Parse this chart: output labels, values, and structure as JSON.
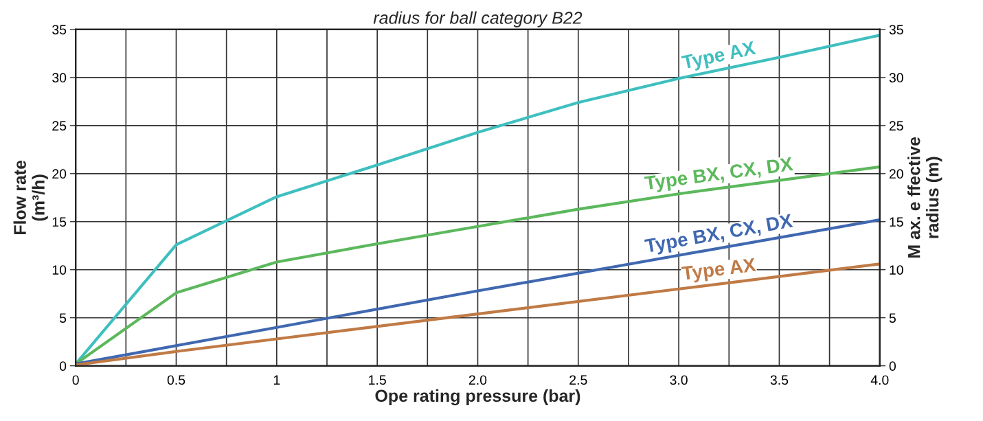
{
  "chart_data": {
    "type": "line",
    "title": "radius for ball category B22",
    "xlabel": "Ope rating pressure (bar)",
    "ylabel": "Flow rate\n(m³/h)",
    "y2label": "M ax. e ffective\nradius (m)",
    "series": [
      {
        "name": "Type AX",
        "color": "#3fbfbf",
        "x": [
          0,
          0.5,
          1,
          1.5,
          2,
          2.5,
          3,
          3.5,
          4
        ],
        "values": [
          0.2,
          12.6,
          17.6,
          20.9,
          24.3,
          27.4,
          29.9,
          32.1,
          34.4
        ]
      },
      {
        "name": "Type BX, CX, DX",
        "color": "#5cb85c",
        "x": [
          0,
          0.5,
          1,
          1.5,
          2,
          2.5,
          3,
          3.5,
          4
        ],
        "values": [
          0.2,
          7.6,
          10.8,
          12.7,
          14.5,
          16.3,
          17.9,
          19.3,
          20.7
        ]
      },
      {
        "name": "Type BX, CX, DX",
        "color": "#4068b0",
        "axis": "y2",
        "x": [
          0,
          0.5,
          1,
          2,
          3,
          4
        ],
        "values": [
          0.2,
          2.1,
          4.0,
          7.8,
          11.5,
          15.2
        ]
      },
      {
        "name": "Type AX",
        "color": "#c07a45",
        "axis": "y2",
        "x": [
          0,
          0.5,
          1,
          2,
          3,
          4
        ],
        "values": [
          0.1,
          1.5,
          2.8,
          5.4,
          8.0,
          10.6
        ]
      }
    ],
    "xlim": [
      0,
      4
    ],
    "xticks": [
      0,
      {
        "value": 0.25,
        "label": null
      },
      0.5,
      {
        "value": 0.75,
        "label": null
      },
      1,
      {
        "value": 1.25,
        "label": null
      },
      1.5,
      {
        "value": 1.75,
        "label": null
      },
      {
        "value": 2,
        "label": "2.0"
      },
      {
        "value": 2.25,
        "label": null
      },
      2.5,
      {
        "value": 2.75,
        "label": null
      },
      {
        "value": 3,
        "label": "3.0"
      },
      {
        "value": 3.25,
        "label": null
      },
      3.5,
      {
        "value": 3.75,
        "label": null
      },
      {
        "value": 4,
        "label": "4.0"
      }
    ],
    "ylim": [
      0,
      35
    ],
    "yticks": [
      0,
      5,
      10,
      15,
      20,
      25,
      30,
      35
    ],
    "y2lim": [
      0,
      35
    ],
    "y2ticks": [
      0,
      5,
      10,
      15,
      20,
      25,
      30,
      35
    ],
    "grid": true,
    "legend": false,
    "marker": "none",
    "line_style": "solid"
  }
}
